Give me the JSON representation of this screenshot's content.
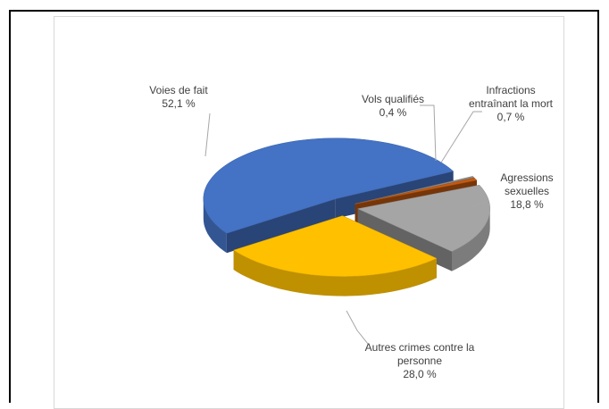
{
  "chart_data": {
    "type": "pie",
    "categories": [
      "Vols qualifiés",
      "Infractions entraînant la mort",
      "Agressions sexuelles",
      "Autres crimes contre la personne",
      "Voies de fait"
    ],
    "values": [
      0.4,
      0.7,
      18.8,
      28.0,
      52.1
    ],
    "value_labels": [
      "0,4 %",
      "0,7 %",
      "18,8 %",
      "28,0 %",
      "52,1 %"
    ],
    "colors": [
      "#8c8c8c",
      "#c55a11",
      "#a5a5a5",
      "#ffc000",
      "#4472c4"
    ]
  }
}
